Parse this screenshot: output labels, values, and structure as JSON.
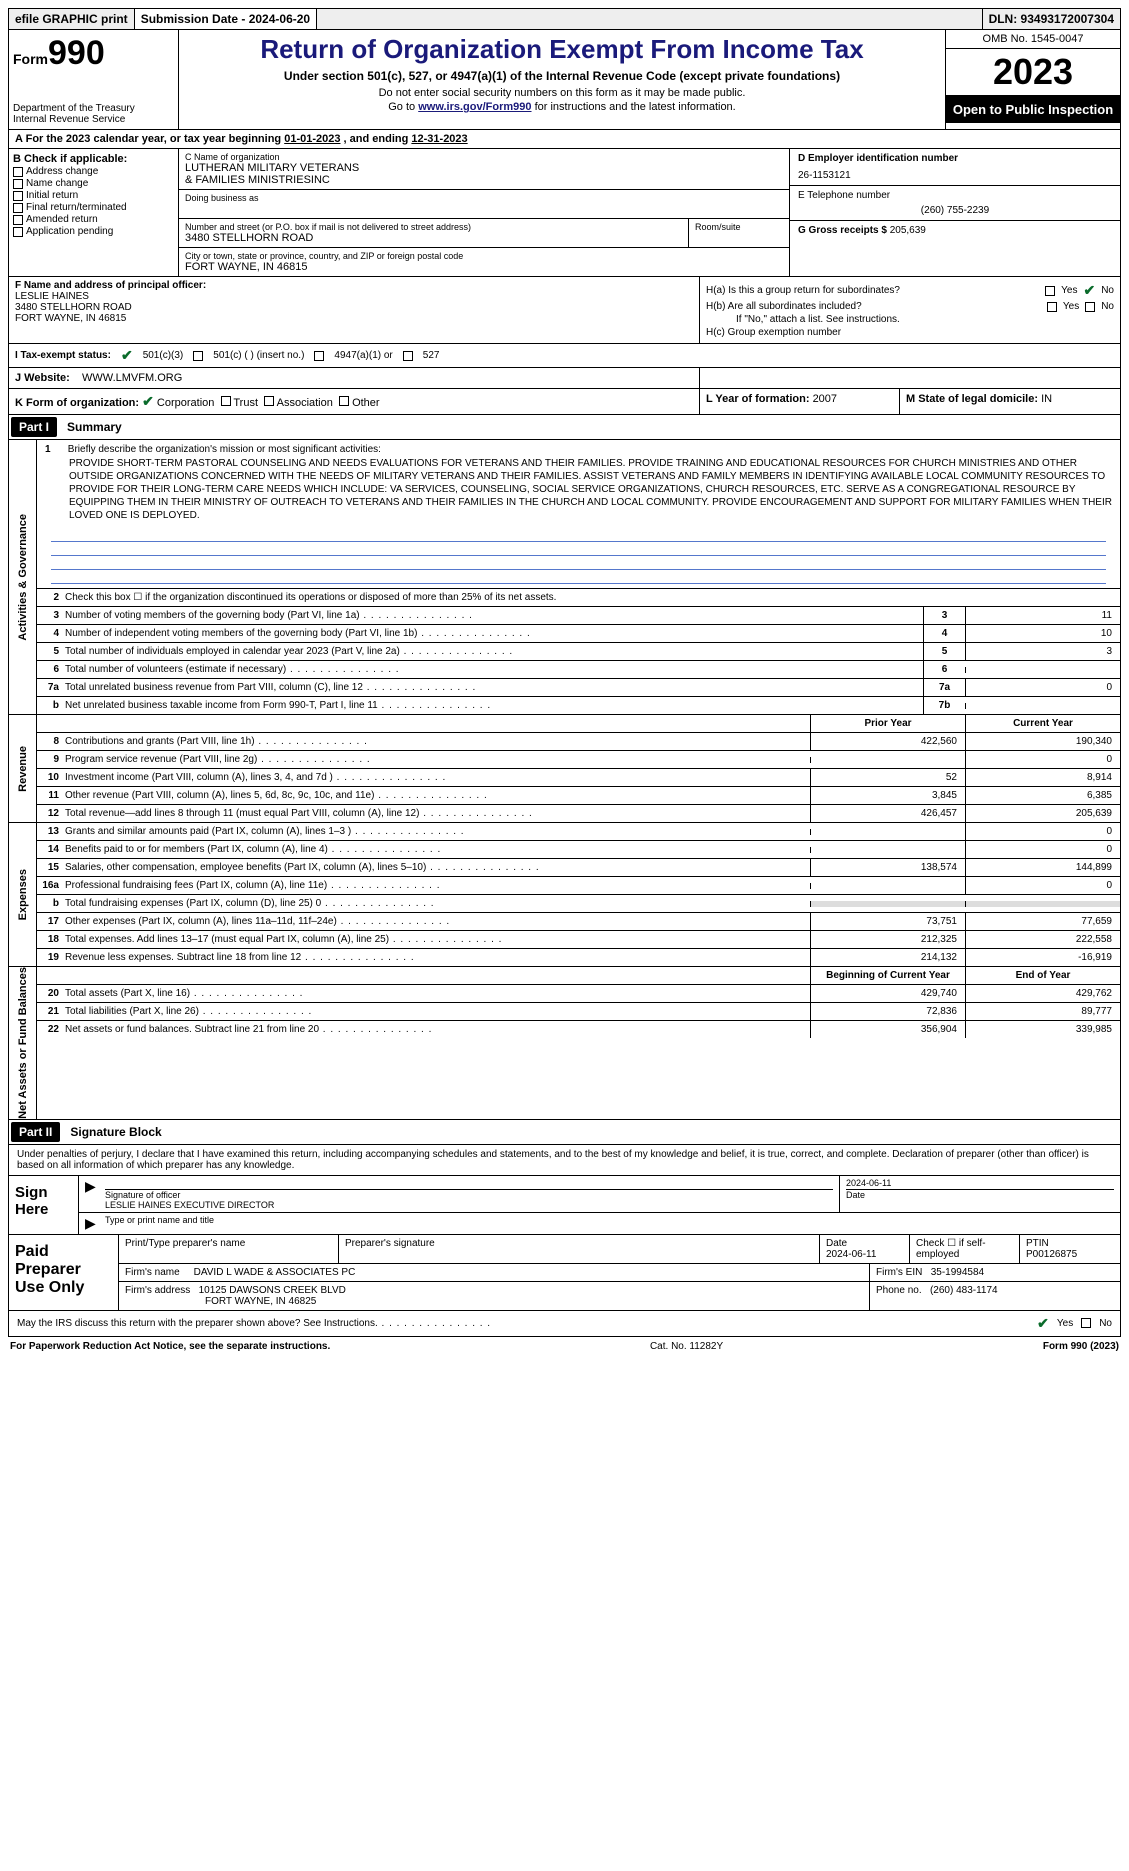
{
  "topbar": {
    "efile": "efile GRAPHIC print",
    "submission": "Submission Date - 2024-06-20",
    "dln": "DLN: 93493172007304"
  },
  "header": {
    "form_prefix": "Form",
    "form_num": "990",
    "dept1": "Department of the Treasury",
    "dept2": "Internal Revenue Service",
    "title": "Return of Organization Exempt From Income Tax",
    "sub1": "Under section 501(c), 527, or 4947(a)(1) of the Internal Revenue Code (except private foundations)",
    "sub2": "Do not enter social security numbers on this form as it may be made public.",
    "sub3_pre": "Go to ",
    "sub3_link": "www.irs.gov/Form990",
    "sub3_post": " for instructions and the latest information.",
    "omb": "OMB No. 1545-0047",
    "year": "2023",
    "open_pub": "Open to Public Inspection"
  },
  "A": {
    "text_pre": "For the 2023 calendar year, or tax year beginning ",
    "begin": "01-01-2023",
    "mid": " , and ending ",
    "end": "12-31-2023"
  },
  "B": {
    "label": "B Check if applicable:",
    "opts": [
      "Address change",
      "Name change",
      "Initial return",
      "Final return/terminated",
      "Amended return",
      "Application pending"
    ]
  },
  "C": {
    "name_lbl": "C Name of organization",
    "name1": "LUTHERAN MILITARY VETERANS",
    "name2": "& FAMILIES MINISTRIESINC",
    "dba_lbl": "Doing business as",
    "street_lbl": "Number and street (or P.O. box if mail is not delivered to street address)",
    "street": "3480 STELLHORN ROAD",
    "room_lbl": "Room/suite",
    "city_lbl": "City or town, state or province, country, and ZIP or foreign postal code",
    "city": "FORT WAYNE, IN  46815"
  },
  "D": {
    "lbl": "D Employer identification number",
    "val": "26-1153121"
  },
  "E": {
    "lbl": "E Telephone number",
    "val": "(260) 755-2239"
  },
  "G": {
    "lbl": "G Gross receipts $",
    "val": "205,639"
  },
  "F": {
    "lbl": "F  Name and address of principal officer:",
    "name": "LESLIE HAINES",
    "addr1": "3480 STELLHORN ROAD",
    "addr2": "FORT WAYNE, IN  46815"
  },
  "H": {
    "a_lbl": "H(a)  Is this a group return for subordinates?",
    "b_lbl": "H(b)  Are all subordinates included?",
    "b_note": "If \"No,\" attach a list. See instructions.",
    "c_lbl": "H(c)  Group exemption number",
    "yes": "Yes",
    "no": "No"
  },
  "I": {
    "lbl": "I  Tax-exempt status:",
    "o1": "501(c)(3)",
    "o2": "501(c) (  ) (insert no.)",
    "o3": "4947(a)(1) or",
    "o4": "527"
  },
  "J": {
    "lbl": "J  Website:",
    "val": "WWW.LMVFM.ORG"
  },
  "K": {
    "lbl": "K Form of organization:",
    "o1": "Corporation",
    "o2": "Trust",
    "o3": "Association",
    "o4": "Other"
  },
  "L": {
    "lbl": "L Year of formation: ",
    "val": "2007"
  },
  "M": {
    "lbl": "M State of legal domicile: ",
    "val": "IN"
  },
  "part1": {
    "tag": "Part I",
    "title": "Summary"
  },
  "vlabels": {
    "ag": "Activities & Governance",
    "rev": "Revenue",
    "exp": "Expenses",
    "na": "Net Assets or Fund Balances"
  },
  "line1": {
    "num": "1",
    "lbl": "Briefly describe the organization's mission or most significant activities:",
    "mission": "PROVIDE SHORT-TERM PASTORAL COUNSELING AND NEEDS EVALUATIONS FOR VETERANS AND THEIR FAMILIES. PROVIDE TRAINING AND EDUCATIONAL RESOURCES FOR CHURCH MINISTRIES AND OTHER OUTSIDE ORGANIZATIONS CONCERNED WITH THE NEEDS OF MILITARY VETERANS AND THEIR FAMILIES. ASSIST VETERANS AND FAMILY MEMBERS IN IDENTIFYING AVAILABLE LOCAL COMMUNITY RESOURCES TO PROVIDE FOR THEIR LONG-TERM CARE NEEDS WHICH INCLUDE: VA SERVICES, COUNSELING, SOCIAL SERVICE ORGANIZATIONS, CHURCH RESOURCES, ETC. SERVE AS A CONGREGATIONAL RESOURCE BY EQUIPPING THEM IN THEIR MINISTRY OF OUTREACH TO VETERANS AND THEIR FAMILIES IN THE CHURCH AND LOCAL COMMUNITY. PROVIDE ENCOURAGEMENT AND SUPPORT FOR MILITARY FAMILIES WHEN THEIR LOVED ONE IS DEPLOYED."
  },
  "ag_lines": [
    {
      "n": "2",
      "d": "Check this box  ☐  if the organization discontinued its operations or disposed of more than 25% of its net assets.",
      "box": "",
      "v": ""
    },
    {
      "n": "3",
      "d": "Number of voting members of the governing body (Part VI, line 1a)",
      "box": "3",
      "v": "11"
    },
    {
      "n": "4",
      "d": "Number of independent voting members of the governing body (Part VI, line 1b)",
      "box": "4",
      "v": "10"
    },
    {
      "n": "5",
      "d": "Total number of individuals employed in calendar year 2023 (Part V, line 2a)",
      "box": "5",
      "v": "3"
    },
    {
      "n": "6",
      "d": "Total number of volunteers (estimate if necessary)",
      "box": "6",
      "v": ""
    },
    {
      "n": "7a",
      "d": "Total unrelated business revenue from Part VIII, column (C), line 12",
      "box": "7a",
      "v": "0"
    },
    {
      "n": "b",
      "d": "Net unrelated business taxable income from Form 990-T, Part I, line 11",
      "box": "7b",
      "v": ""
    }
  ],
  "colhdrs": {
    "prior": "Prior Year",
    "current": "Current Year"
  },
  "rev_lines": [
    {
      "n": "8",
      "d": "Contributions and grants (Part VIII, line 1h)",
      "c1": "422,560",
      "c2": "190,340"
    },
    {
      "n": "9",
      "d": "Program service revenue (Part VIII, line 2g)",
      "c1": "",
      "c2": "0"
    },
    {
      "n": "10",
      "d": "Investment income (Part VIII, column (A), lines 3, 4, and 7d )",
      "c1": "52",
      "c2": "8,914"
    },
    {
      "n": "11",
      "d": "Other revenue (Part VIII, column (A), lines 5, 6d, 8c, 9c, 10c, and 11e)",
      "c1": "3,845",
      "c2": "6,385"
    },
    {
      "n": "12",
      "d": "Total revenue—add lines 8 through 11 (must equal Part VIII, column (A), line 12)",
      "c1": "426,457",
      "c2": "205,639"
    }
  ],
  "exp_lines": [
    {
      "n": "13",
      "d": "Grants and similar amounts paid (Part IX, column (A), lines 1–3 )",
      "c1": "",
      "c2": "0"
    },
    {
      "n": "14",
      "d": "Benefits paid to or for members (Part IX, column (A), line 4)",
      "c1": "",
      "c2": "0"
    },
    {
      "n": "15",
      "d": "Salaries, other compensation, employee benefits (Part IX, column (A), lines 5–10)",
      "c1": "138,574",
      "c2": "144,899"
    },
    {
      "n": "16a",
      "d": "Professional fundraising fees (Part IX, column (A), line 11e)",
      "c1": "",
      "c2": "0"
    },
    {
      "n": "b",
      "d": "Total fundraising expenses (Part IX, column (D), line 25) 0",
      "c1": "grey",
      "c2": "grey"
    },
    {
      "n": "17",
      "d": "Other expenses (Part IX, column (A), lines 11a–11d, 11f–24e)",
      "c1": "73,751",
      "c2": "77,659"
    },
    {
      "n": "18",
      "d": "Total expenses. Add lines 13–17 (must equal Part IX, column (A), line 25)",
      "c1": "212,325",
      "c2": "222,558"
    },
    {
      "n": "19",
      "d": "Revenue less expenses. Subtract line 18 from line 12",
      "c1": "214,132",
      "c2": "-16,919"
    }
  ],
  "na_hdrs": {
    "c1": "Beginning of Current Year",
    "c2": "End of Year"
  },
  "na_lines": [
    {
      "n": "20",
      "d": "Total assets (Part X, line 16)",
      "c1": "429,740",
      "c2": "429,762"
    },
    {
      "n": "21",
      "d": "Total liabilities (Part X, line 26)",
      "c1": "72,836",
      "c2": "89,777"
    },
    {
      "n": "22",
      "d": "Net assets or fund balances. Subtract line 21 from line 20",
      "c1": "356,904",
      "c2": "339,985"
    }
  ],
  "part2": {
    "tag": "Part II",
    "title": "Signature Block"
  },
  "sig_intro": "Under penalties of perjury, I declare that I have examined this return, including accompanying schedules and statements, and to the best of my knowledge and belief, it is true, correct, and complete. Declaration of preparer (other than officer) is based on all information of which preparer has any knowledge.",
  "sign": {
    "lbl": "Sign Here",
    "sig_lbl": "Signature of officer",
    "date_lbl": "Date",
    "date": "2024-06-11",
    "name": "LESLIE HAINES  EXECUTIVE DIRECTOR",
    "type_lbl": "Type or print name and title"
  },
  "paid": {
    "lbl": "Paid Preparer Use Only",
    "pname_lbl": "Print/Type preparer's name",
    "psig_lbl": "Preparer's signature",
    "pdate_lbl": "Date",
    "pdate": "2024-06-11",
    "check_lbl": "Check ☐ if self-employed",
    "ptin_lbl": "PTIN",
    "ptin": "P00126875",
    "firm_name_lbl": "Firm's name",
    "firm_name": "DAVID L WADE & ASSOCIATES PC",
    "firm_ein_lbl": "Firm's EIN",
    "firm_ein": "35-1994584",
    "firm_addr_lbl": "Firm's address",
    "firm_addr1": "10125 DAWSONS CREEK BLVD",
    "firm_addr2": "FORT WAYNE, IN  46825",
    "phone_lbl": "Phone no.",
    "phone": "(260) 483-1174"
  },
  "may_discuss": "May the IRS discuss this return with the preparer shown above? See Instructions.",
  "footer": {
    "left": "For Paperwork Reduction Act Notice, see the separate instructions.",
    "mid": "Cat. No. 11282Y",
    "right": "Form 990 (2023)"
  }
}
